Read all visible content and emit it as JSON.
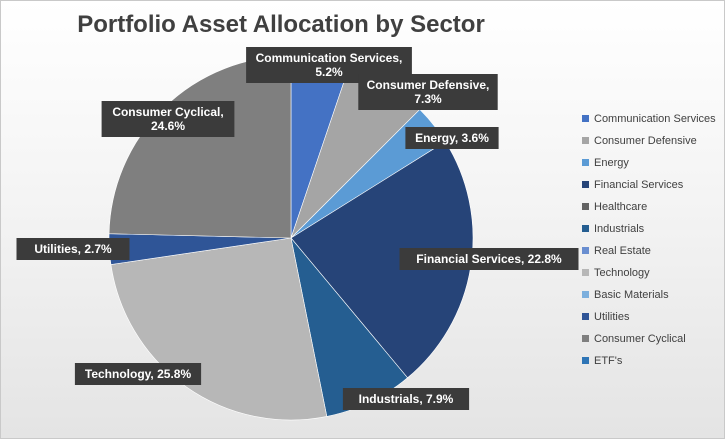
{
  "chart_data": {
    "type": "pie",
    "title": "Portfolio Asset Allocation by Sector",
    "legend_position": "right",
    "slices": [
      {
        "name": "Communication Services",
        "value": 5.2,
        "label": "Communication Services, 5.2%",
        "label_lines": [
          "Communication Services,",
          "5.2%"
        ],
        "color": "#4472c4"
      },
      {
        "name": "Consumer Defensive",
        "value": 7.3,
        "label": "Consumer Defensive, 7.3%",
        "label_lines": [
          "Consumer Defensive,",
          "7.3%"
        ],
        "color": "#a5a5a5"
      },
      {
        "name": "Energy",
        "value": 3.6,
        "label": "Energy, 3.6%",
        "label_lines": [
          "Energy, 3.6%"
        ],
        "color": "#5b9bd5"
      },
      {
        "name": "Financial Services",
        "value": 22.8,
        "label": "Financial Services, 22.8%",
        "label_lines": [
          "Financial Services, 22.8%"
        ],
        "color": "#264478"
      },
      {
        "name": "Healthcare",
        "value": 0,
        "label": "",
        "label_lines": [],
        "color": "#636363"
      },
      {
        "name": "Industrials",
        "value": 7.9,
        "label": "Industrials, 7.9%",
        "label_lines": [
          "Industrials, 7.9%"
        ],
        "color": "#255e91"
      },
      {
        "name": "Real Estate",
        "value": 0,
        "label": "",
        "label_lines": [],
        "color": "#698ed0"
      },
      {
        "name": "Technology",
        "value": 25.8,
        "label": "Technology, 25.8%",
        "label_lines": [
          "Technology, 25.8%"
        ],
        "color": "#b7b7b7"
      },
      {
        "name": "Basic Materials",
        "value": 0,
        "label": "",
        "label_lines": [],
        "color": "#7cafdd"
      },
      {
        "name": "Utilities",
        "value": 2.7,
        "label": "Utilities, 2.7%",
        "label_lines": [
          "Utilities, 2.7%"
        ],
        "color": "#2f5597"
      },
      {
        "name": "Consumer Cyclical",
        "value": 24.6,
        "label": "Consumer Cyclical, 24.6%",
        "label_lines": [
          "Consumer Cyclical,",
          "24.6%"
        ],
        "color": "#7f7f7f"
      },
      {
        "name": "ETF's",
        "value": 0,
        "label": "",
        "label_lines": [],
        "color": "#2e75b6"
      }
    ]
  }
}
